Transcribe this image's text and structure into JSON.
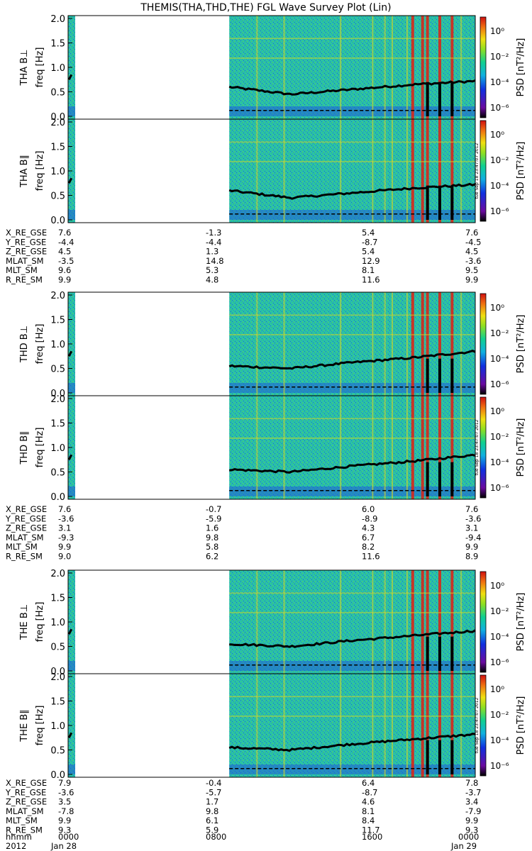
{
  "title": "THEMIS(THA,THD,THE) FGL Wave Survey Plot (Lin)",
  "colorbar_label": "PSD [nT²/Hz]",
  "colorbar_ticks": [
    "10⁰",
    "10⁻²",
    "10⁻⁴",
    "10⁻⁶"
  ],
  "colors": {
    "spec_bg": "#22c8a8",
    "speckle_blue": "#1f5fd8",
    "line": "#000000",
    "stripe": "#d8d820",
    "hot": "#e02010"
  },
  "chart_data": {
    "type": "heatmap",
    "title": "THEMIS(THA,THD,THE) FGL Wave Survey Plot (Lin)",
    "ylabel": "freq [Hz]",
    "ylim": [
      0,
      2.0
    ],
    "yticks": [
      "0.0",
      "0.5",
      "1.0",
      "1.5",
      "2.0"
    ],
    "colorbar": {
      "label": "PSD [nT²/Hz]",
      "range_log10": [
        -6,
        1
      ]
    },
    "stamp": "tue Sep 18 23:47:07 2012",
    "x_header": [
      "hhmm",
      "2012"
    ],
    "x_ticks": [
      {
        "time": "0000",
        "date": "Jan 28",
        "hours": 0
      },
      {
        "time": "0800",
        "date": "",
        "hours": 8
      },
      {
        "time": "1600",
        "date": "",
        "hours": 16
      },
      {
        "time": "0000",
        "date": "Jan 29",
        "hours": 24
      }
    ],
    "data_coverage_hours": [
      [
        0,
        0.3
      ],
      [
        9.5,
        24
      ]
    ],
    "panels": [
      {
        "label": "THA B⊥",
        "spin_freq_hours": [
          9.5,
          24
        ],
        "spin_freq_hz": [
          0.6,
          0.45,
          0.55,
          0.65,
          0.72
        ]
      },
      {
        "label": "THA B∥",
        "spin_freq_hours": [
          9.5,
          24
        ],
        "spin_freq_hz": [
          0.6,
          0.45,
          0.55,
          0.65,
          0.72
        ]
      },
      {
        "label": "THD B⊥",
        "spin_freq_hours": [
          9.5,
          24
        ],
        "spin_freq_hz": [
          0.55,
          0.5,
          0.62,
          0.72,
          0.85
        ]
      },
      {
        "label": "THD B∥",
        "spin_freq_hours": [
          9.5,
          24
        ],
        "spin_freq_hz": [
          0.55,
          0.5,
          0.62,
          0.72,
          0.85
        ]
      },
      {
        "label": "THE B⊥",
        "spin_freq_hours": [
          9.5,
          24
        ],
        "spin_freq_hz": [
          0.55,
          0.5,
          0.62,
          0.72,
          0.82
        ]
      },
      {
        "label": "THE B∥",
        "spin_freq_hours": [
          9.5,
          24
        ],
        "spin_freq_hz": [
          0.55,
          0.5,
          0.62,
          0.72,
          0.82
        ]
      }
    ],
    "ephemeris": [
      {
        "probe": "THA",
        "rows": [
          [
            "X_RE_GSE",
            "7.6",
            "-1.3",
            "5.4",
            "7.6"
          ],
          [
            "Y_RE_GSE",
            "-4.4",
            "-4.4",
            "-8.7",
            "-4.5"
          ],
          [
            "Z_RE_GSE",
            "4.5",
            "1.3",
            "5.4",
            "4.5"
          ],
          [
            "MLAT_SM",
            "-3.5",
            "14.8",
            "12.9",
            "-3.6"
          ],
          [
            "MLT_SM",
            "9.6",
            "5.3",
            "8.1",
            "9.5"
          ],
          [
            "R_RE_SM",
            "9.9",
            "4.8",
            "11.6",
            "9.9"
          ]
        ]
      },
      {
        "probe": "THD",
        "rows": [
          [
            "X_RE_GSE",
            "7.6",
            "-0.7",
            "6.0",
            "7.6"
          ],
          [
            "Y_RE_GSE",
            "-3.6",
            "-5.9",
            "-8.9",
            "-3.6"
          ],
          [
            "Z_RE_GSE",
            "3.1",
            "1.6",
            "4.3",
            "3.1"
          ],
          [
            "MLAT_SM",
            "-9.3",
            "9.8",
            "6.7",
            "-9.4"
          ],
          [
            "MLT_SM",
            "9.9",
            "5.8",
            "8.2",
            "9.9"
          ],
          [
            "R_RE_SM",
            "9.0",
            "6.2",
            "11.6",
            "8.9"
          ]
        ]
      },
      {
        "probe": "THE",
        "rows": [
          [
            "X_RE_GSE",
            "7.9",
            "-0.4",
            "6.4",
            "7.8"
          ],
          [
            "Y_RE_GSE",
            "-3.6",
            "-5.7",
            "-8.7",
            "-3.7"
          ],
          [
            "Z_RE_GSE",
            "3.5",
            "1.7",
            "4.6",
            "3.4"
          ],
          [
            "MLAT_SM",
            "-7.8",
            "9.8",
            "8.1",
            "-7.9"
          ],
          [
            "MLT_SM",
            "9.9",
            "6.1",
            "8.4",
            "9.9"
          ],
          [
            "R_RE_SM",
            "9.3",
            "5.9",
            "11.7",
            "9.3"
          ]
        ]
      }
    ]
  }
}
